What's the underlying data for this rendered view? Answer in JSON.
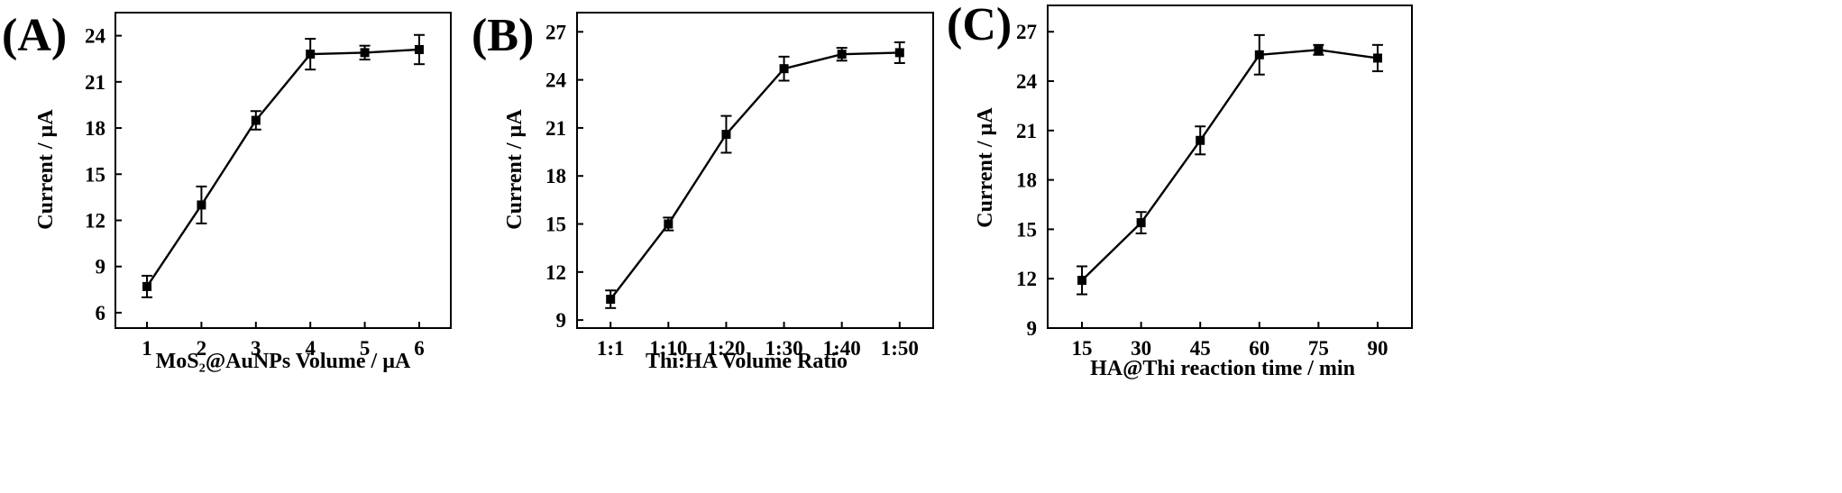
{
  "chart_data": [
    {
      "type": "line",
      "panel_label": "(A)",
      "xlabel": "MoS₂@AuNPs Volume / µA",
      "ylabel": "Current / µA",
      "categories": [
        "1",
        "2",
        "3",
        "4",
        "5",
        "6"
      ],
      "values": [
        7.7,
        13.0,
        18.5,
        22.8,
        22.9,
        23.1
      ],
      "errors": [
        0.7,
        1.2,
        0.6,
        1.0,
        0.45,
        0.95
      ],
      "ylim": [
        5,
        25.5
      ],
      "yticks": [
        6,
        9,
        12,
        15,
        18,
        21,
        24
      ],
      "grid": false,
      "legend": "none"
    },
    {
      "type": "line",
      "panel_label": "(B)",
      "xlabel": "Thi:HA Volume Ratio",
      "ylabel": "Current / µA",
      "categories": [
        "1:1",
        "1:10",
        "1:20",
        "1:30",
        "1:40",
        "1:50"
      ],
      "values": [
        10.3,
        15.0,
        20.6,
        24.7,
        25.6,
        25.7
      ],
      "errors": [
        0.55,
        0.4,
        1.15,
        0.75,
        0.4,
        0.65
      ],
      "ylim": [
        8.5,
        28.2
      ],
      "yticks": [
        9,
        12,
        15,
        18,
        21,
        24,
        27
      ],
      "grid": false,
      "legend": "none"
    },
    {
      "type": "line",
      "panel_label": "(C)",
      "xlabel": "HA@Thi reaction time / min",
      "ylabel": "Current / µA",
      "categories": [
        "15",
        "30",
        "45",
        "60",
        "75",
        "90"
      ],
      "values": [
        11.9,
        15.4,
        20.4,
        25.6,
        25.9,
        25.4
      ],
      "errors": [
        0.85,
        0.65,
        0.85,
        1.2,
        0.3,
        0.8
      ],
      "ylim": [
        9,
        28.6
      ],
      "yticks": [
        9,
        12,
        15,
        18,
        21,
        24,
        27
      ],
      "grid": false,
      "legend": "none"
    }
  ]
}
